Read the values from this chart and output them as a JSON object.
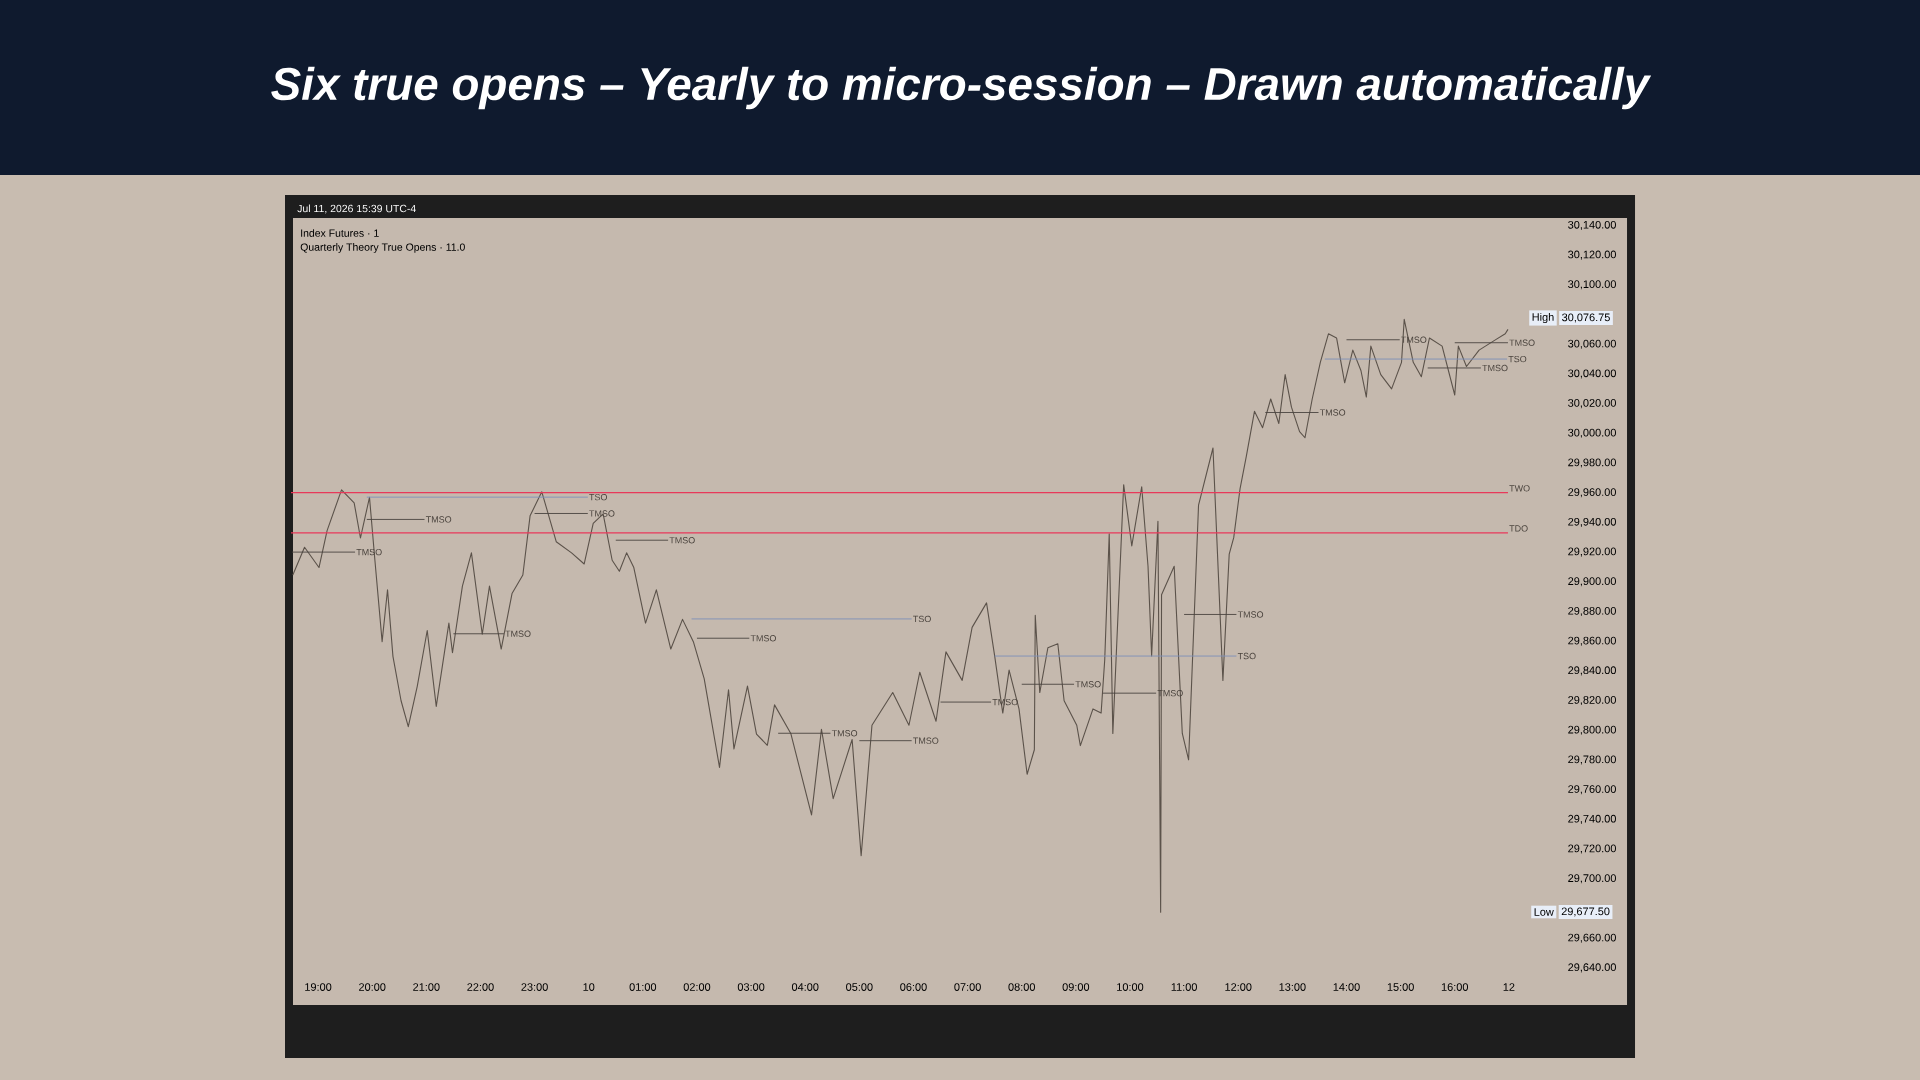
{
  "chart_data": {
    "type": "line",
    "title": "Six true opens – Yearly to micro-session – Drawn automatically",
    "annotations": [
      "Jul 11, 2026 15:39 UTC-4",
      "Index Futures · 1",
      "Quarterly Theory True Opens · 11.0",
      "High",
      "30,076.75",
      "Low",
      "29,677.50",
      {
        "text": "TMSO",
        "x": "2026-07-09T19:41",
        "y": 29920
      },
      {
        "text": "TMSO",
        "x": "2026-07-09T20:58",
        "y": 29942
      },
      {
        "text": "TMSO",
        "x": "2026-07-09T22:26",
        "y": 29865
      },
      {
        "text": "TSO",
        "x": "2026-07-09T23:59",
        "y": 29957
      },
      {
        "text": "TMSO",
        "x": "2026-07-09T23:59",
        "y": 29946
      },
      {
        "text": "TMSO",
        "x": "2026-07-10T01:28",
        "y": 29928
      },
      {
        "text": "TMSO",
        "x": "2026-07-10T02:58",
        "y": 29862
      },
      {
        "text": "TSO",
        "x": "2026-07-10T05:58",
        "y": 29875
      },
      {
        "text": "TMSO",
        "x": "2026-07-10T04:28",
        "y": 29798
      },
      {
        "text": "TMSO",
        "x": "2026-07-10T05:58",
        "y": 29793
      },
      {
        "text": "TMSO",
        "x": "2026-07-10T07:26",
        "y": 29819
      },
      {
        "text": "TMSO",
        "x": "2026-07-10T08:58",
        "y": 29831
      },
      {
        "text": "TMSO",
        "x": "2026-07-10T10:29",
        "y": 29825
      },
      {
        "text": "TMSO",
        "x": "2026-07-10T11:58",
        "y": 29878
      },
      {
        "text": "TSO",
        "x": "2026-07-10T11:58",
        "y": 29850
      },
      {
        "text": "TMSO",
        "x": "2026-07-10T13:29",
        "y": 30014
      },
      {
        "text": "TMSO",
        "x": "2026-07-10T14:59",
        "y": 30063
      },
      {
        "text": "TMSO",
        "x": "2026-07-10T16:29",
        "y": 30044
      },
      {
        "text": "TSO",
        "x": "2026-07-10T16:58",
        "y": 30050
      },
      {
        "text": "TMSO",
        "x": "2026-07-10T16:59",
        "y": 30061
      }
    ],
    "x": [
      "2026-07-09T18:32",
      "2026-07-09T18:45",
      "2026-07-09T19:01",
      "2026-07-09T19:10",
      "2026-07-09T19:26",
      "2026-07-09T19:40",
      "2026-07-09T19:47",
      "2026-07-09T19:57",
      "2026-07-09T20:03",
      "2026-07-09T20:11",
      "2026-07-09T20:17",
      "2026-07-09T20:23",
      "2026-07-09T20:32",
      "2026-07-09T20:40",
      "2026-07-09T20:50",
      "2026-07-09T21:01",
      "2026-07-09T21:11",
      "2026-07-09T21:25",
      "2026-07-09T21:29",
      "2026-07-09T21:40",
      "2026-07-09T21:50",
      "2026-07-09T22:02",
      "2026-07-09T22:10",
      "2026-07-09T22:23",
      "2026-07-09T22:35",
      "2026-07-09T22:47",
      "2026-07-09T22:55",
      "2026-07-09T23:08",
      "2026-07-09T23:24",
      "2026-07-09T23:41",
      "2026-07-09T23:55",
      "2026-07-10T00:05",
      "2026-07-10T00:16",
      "2026-07-10T00:26",
      "2026-07-10T00:34",
      "2026-07-10T00:42",
      "2026-07-10T00:50",
      "2026-07-10T01:03",
      "2026-07-10T01:15",
      "2026-07-10T01:31",
      "2026-07-10T01:44",
      "2026-07-10T01:56",
      "2026-07-10T02:08",
      "2026-07-10T02:25",
      "2026-07-10T02:35",
      "2026-07-10T02:41",
      "2026-07-10T02:56",
      "2026-07-10T03:06",
      "2026-07-10T03:18",
      "2026-07-10T03:26",
      "2026-07-10T03:44",
      "2026-07-10T04:07",
      "2026-07-10T04:18",
      "2026-07-10T04:31",
      "2026-07-10T04:52",
      "2026-07-10T05:02",
      "2026-07-10T05:14",
      "2026-07-10T05:37",
      "2026-07-10T05:55",
      "2026-07-10T06:07",
      "2026-07-10T06:25",
      "2026-07-10T06:36",
      "2026-07-10T06:54",
      "2026-07-10T07:05",
      "2026-07-10T07:21",
      "2026-07-10T07:30",
      "2026-07-10T07:39",
      "2026-07-10T07:46",
      "2026-07-10T07:57",
      "2026-07-10T08:06",
      "2026-07-10T08:14",
      "2026-07-10T08:15",
      "2026-07-10T08:20",
      "2026-07-10T08:29",
      "2026-07-10T08:40",
      "2026-07-10T08:47",
      "2026-07-10T09:01",
      "2026-07-10T09:05",
      "2026-07-10T09:19",
      "2026-07-10T09:28",
      "2026-07-10T09:32",
      "2026-07-10T09:37",
      "2026-07-10T09:41",
      "2026-07-10T09:53",
      "2026-07-10T10:02",
      "2026-07-10T10:13",
      "2026-07-10T10:20",
      "2026-07-10T10:24",
      "2026-07-10T10:31",
      "2026-07-10T10:34",
      "2026-07-10T10:35",
      "2026-07-10T10:49",
      "2026-07-10T10:58",
      "2026-07-10T11:05",
      "2026-07-10T11:16",
      "2026-07-10T11:32",
      "2026-07-10T11:43",
      "2026-07-10T11:50",
      "2026-07-10T11:55",
      "2026-07-10T12:02",
      "2026-07-10T12:09",
      "2026-07-10T12:18",
      "2026-07-10T12:27",
      "2026-07-10T12:36",
      "2026-07-10T12:45",
      "2026-07-10T12:52",
      "2026-07-10T12:59",
      "2026-07-10T13:08",
      "2026-07-10T13:14",
      "2026-07-10T13:22",
      "2026-07-10T13:31",
      "2026-07-10T13:40",
      "2026-07-10T13:49",
      "2026-07-10T13:58",
      "2026-07-10T14:07",
      "2026-07-10T14:16",
      "2026-07-10T14:22",
      "2026-07-10T14:27",
      "2026-07-10T14:38",
      "2026-07-10T14:50",
      "2026-07-10T15:01",
      "2026-07-10T15:04",
      "2026-07-10T15:14",
      "2026-07-10T15:23",
      "2026-07-10T15:32",
      "2026-07-10T15:46",
      "2026-07-10T16:00",
      "2026-07-10T16:04",
      "2026-07-10T16:13",
      "2026-07-10T16:27",
      "2026-07-10T16:45",
      "2026-07-10T16:56",
      "2026-07-10T16:59"
    ],
    "series": [
      {
        "color": "#5b524a",
        "values": [
          29904.6,
          29923.3,
          29909.6,
          29934.5,
          29961.9,
          29953.2,
          29929.5,
          29956.9,
          29914.5,
          29859.7,
          29894.6,
          29849.8,
          29819.9,
          29802.4,
          29829.8,
          29867.2,
          29816.1,
          29872.2,
          29852.2,
          29897.1,
          29919.5,
          29864.7,
          29897.1,
          29854.7,
          29892.1,
          29904.6,
          29944.4,
          29960.6,
          29927,
          29919.5,
          29912,
          29939.4,
          29945.7,
          29914.5,
          29907.1,
          29919.5,
          29909.6,
          29872.2,
          29894.6,
          29854.7,
          29874.7,
          29859.7,
          29834.8,
          29775,
          29827.3,
          29787.5,
          29829.8,
          29797.4,
          29789.9,
          29817.1,
          29797.9,
          29743,
          29800.7,
          29754,
          29793.8,
          29715.5,
          29803.4,
          29825.4,
          29803.4,
          29839.1,
          29806.1,
          29852.8,
          29833.6,
          29869.3,
          29885.8,
          29850.1,
          29811.6,
          29840.5,
          29814.4,
          29770.4,
          29786.9,
          29877.5,
          29825.4,
          29855.6,
          29858.3,
          29819.9,
          29803.4,
          29789.7,
          29814.4,
          29811.6,
          29847.3,
          29932.4,
          29797.9,
          29965.4,
          29924.2,
          29964,
          29910.5,
          29850.1,
          29940.7,
          29677.5,
          29891.3,
          29910.5,
          29797.9,
          29780.1,
          29951.7,
          29990.1,
          29833.6,
          29918.7,
          29929.7,
          29962.6,
          29984.6,
          30014.8,
          30003.8,
          30023.1,
          30006.6,
          30039.5,
          30017.6,
          30001.1,
          29997,
          30023.1,
          30047.8,
          30067,
          30064.2,
          30034,
          30056,
          30042.3,
          30024.4,
          30058.7,
          30039.5,
          30029.9,
          30047.8,
          30076.75,
          30047.8,
          30038.1,
          30064.2,
          30058.7,
          30025.8,
          30058.7,
          30045,
          30056,
          30062.9,
          30067,
          30070
        ]
      },
      {
        "type": "line",
        "color": "#4a4440",
        "x": [
          "2026-07-09T18:31",
          "2026-07-09T19:41"
        ],
        "values": [
          29920,
          29920
        ]
      },
      {
        "type": "line",
        "color": "#4a4440",
        "x": [
          "2026-07-09T19:54",
          "2026-07-09T20:58"
        ],
        "values": [
          29942,
          29942
        ]
      },
      {
        "type": "line",
        "color": "#4a4440",
        "x": [
          "2026-07-09T21:30",
          "2026-07-09T22:26"
        ],
        "values": [
          29865,
          29865
        ]
      },
      {
        "type": "line",
        "color": "#7d8fb8",
        "x": [
          "2026-07-09T19:54",
          "2026-07-09T23:59"
        ],
        "values": [
          29957,
          29957
        ]
      },
      {
        "type": "line",
        "color": "#4a4440",
        "x": [
          "2026-07-09T23:00",
          "2026-07-09T23:59"
        ],
        "values": [
          29946,
          29946
        ]
      },
      {
        "type": "line",
        "color": "#4a4440",
        "x": [
          "2026-07-10T00:30",
          "2026-07-10T01:28"
        ],
        "values": [
          29928,
          29928
        ]
      },
      {
        "type": "line",
        "color": "#4a4440",
        "x": [
          "2026-07-10T02:00",
          "2026-07-10T02:58"
        ],
        "values": [
          29862,
          29862
        ]
      },
      {
        "type": "line",
        "color": "#7d8fb8",
        "x": [
          "2026-07-10T01:54",
          "2026-07-10T05:58"
        ],
        "values": [
          29875,
          29875
        ]
      },
      {
        "type": "line",
        "color": "#4a4440",
        "x": [
          "2026-07-10T03:30",
          "2026-07-10T04:28"
        ],
        "values": [
          29798,
          29798
        ]
      },
      {
        "type": "line",
        "color": "#4a4440",
        "x": [
          "2026-07-10T05:00",
          "2026-07-10T05:58"
        ],
        "values": [
          29793,
          29793
        ]
      },
      {
        "type": "line",
        "color": "#4a4440",
        "x": [
          "2026-07-10T06:30",
          "2026-07-10T07:26"
        ],
        "values": [
          29819,
          29819
        ]
      },
      {
        "type": "line",
        "color": "#4a4440",
        "x": [
          "2026-07-10T08:00",
          "2026-07-10T08:58"
        ],
        "values": [
          29831,
          29831
        ]
      },
      {
        "type": "line",
        "color": "#4a4440",
        "x": [
          "2026-07-10T09:30",
          "2026-07-10T10:29"
        ],
        "values": [
          29825,
          29825
        ]
      },
      {
        "type": "line",
        "color": "#4a4440",
        "x": [
          "2026-07-10T11:00",
          "2026-07-10T11:58"
        ],
        "values": [
          29878,
          29878
        ]
      },
      {
        "type": "line",
        "color": "#7d8fb8",
        "x": [
          "2026-07-10T07:30",
          "2026-07-10T11:58"
        ],
        "values": [
          29850,
          29850
        ]
      },
      {
        "type": "line",
        "color": "#4a4440",
        "x": [
          "2026-07-10T12:30",
          "2026-07-10T13:29"
        ],
        "values": [
          30014,
          30014
        ]
      },
      {
        "type": "line",
        "color": "#4a4440",
        "x": [
          "2026-07-10T14:00",
          "2026-07-10T14:59"
        ],
        "values": [
          30063,
          30063
        ]
      },
      {
        "type": "line",
        "color": "#4a4440",
        "x": [
          "2026-07-10T15:30",
          "2026-07-10T16:29"
        ],
        "values": [
          30044,
          30044
        ]
      },
      {
        "type": "line",
        "color": "#7d8fb8",
        "x": [
          "2026-07-10T13:36",
          "2026-07-10T16:58"
        ],
        "values": [
          30050,
          30050
        ]
      },
      {
        "type": "line",
        "color": "#4a4440",
        "x": [
          "2026-07-10T16:00",
          "2026-07-10T16:59"
        ],
        "values": [
          30061,
          30061
        ]
      }
    ],
    "xlim": [
      "2026-07-09T18:30",
      "2026-07-10T19:11"
    ],
    "ylim": [
      29615,
      30145
    ],
    "xticks": [
      {
        "value": "2026-07-09T19:00",
        "label": "19:00"
      },
      {
        "value": "2026-07-09T20:00",
        "label": "20:00"
      },
      {
        "value": "2026-07-09T21:00",
        "label": "21:00"
      },
      {
        "value": "2026-07-09T22:00",
        "label": "22:00"
      },
      {
        "value": "2026-07-09T23:00",
        "label": "23:00"
      },
      {
        "value": "2026-07-10T00:00",
        "label": "10"
      },
      {
        "value": "2026-07-10T01:00",
        "label": "01:00"
      },
      {
        "value": "2026-07-10T02:00",
        "label": "02:00"
      },
      {
        "value": "2026-07-10T03:00",
        "label": "03:00"
      },
      {
        "value": "2026-07-10T04:00",
        "label": "04:00"
      },
      {
        "value": "2026-07-10T05:00",
        "label": "05:00"
      },
      {
        "value": "2026-07-10T06:00",
        "label": "06:00"
      },
      {
        "value": "2026-07-10T07:00",
        "label": "07:00"
      },
      {
        "value": "2026-07-10T08:00",
        "label": "08:00"
      },
      {
        "value": "2026-07-10T09:00",
        "label": "09:00"
      },
      {
        "value": "2026-07-10T10:00",
        "label": "10:00"
      },
      {
        "value": "2026-07-10T11:00",
        "label": "11:00"
      },
      {
        "value": "2026-07-10T12:00",
        "label": "12:00"
      },
      {
        "value": "2026-07-10T13:00",
        "label": "13:00"
      },
      {
        "value": "2026-07-10T14:00",
        "label": "14:00"
      },
      {
        "value": "2026-07-10T15:00",
        "label": "15:00"
      },
      {
        "value": "2026-07-10T16:00",
        "label": "16:00"
      },
      {
        "value": "2026-07-10T17:00",
        "label": "12"
      }
    ],
    "yticks": [
      {
        "value": 29640,
        "label": "29,640.00"
      },
      {
        "value": 29660,
        "label": "29,660.00"
      },
      {
        "value": 29700,
        "label": "29,700.00"
      },
      {
        "value": 29720,
        "label": "29,720.00"
      },
      {
        "value": 29740,
        "label": "29,740.00"
      },
      {
        "value": 29760,
        "label": "29,760.00"
      },
      {
        "value": 29780,
        "label": "29,780.00"
      },
      {
        "value": 29800,
        "label": "29,800.00"
      },
      {
        "value": 29820,
        "label": "29,820.00"
      },
      {
        "value": 29840,
        "label": "29,840.00"
      },
      {
        "value": 29860,
        "label": "29,860.00"
      },
      {
        "value": 29880,
        "label": "29,880.00"
      },
      {
        "value": 29900,
        "label": "29,900.00"
      },
      {
        "value": 29920,
        "label": "29,920.00"
      },
      {
        "value": 29940,
        "label": "29,940.00"
      },
      {
        "value": 29960,
        "label": "29,960.00"
      },
      {
        "value": 29980,
        "label": "29,980.00"
      },
      {
        "value": 30000,
        "label": "30,000.00"
      },
      {
        "value": 30020,
        "label": "30,020.00"
      },
      {
        "value": 30040,
        "label": "30,040.00"
      },
      {
        "value": 30060,
        "label": "30,060.00"
      },
      {
        "value": 30100,
        "label": "30,100.00"
      },
      {
        "value": 30120,
        "label": "30,120.00"
      },
      {
        "value": 30140,
        "label": "30,140.00"
      }
    ],
    "ref_lines": [
      {
        "axis": "y",
        "value": 29960,
        "label": "TWO",
        "color": "#e8395a"
      },
      {
        "axis": "y",
        "value": 29933,
        "label": "TDO",
        "color": "#e8395a"
      }
    ]
  }
}
